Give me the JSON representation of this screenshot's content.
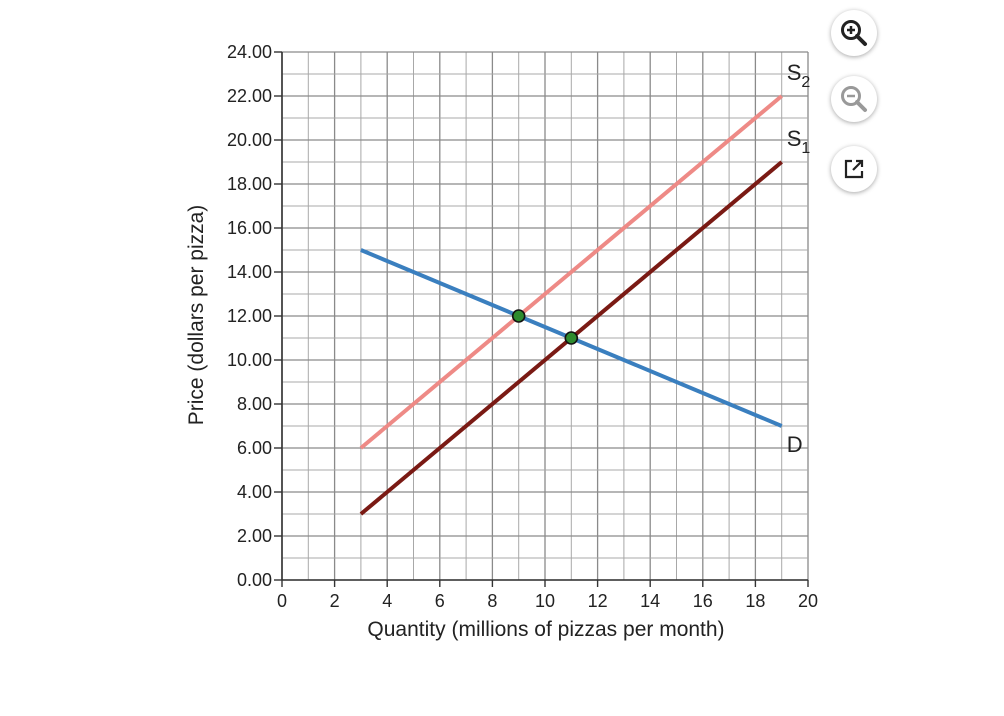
{
  "chart_data": {
    "type": "line",
    "xlabel": "Quantity (millions of pizzas per month)",
    "ylabel": "Price (dollars per pizza)",
    "xlim": [
      0,
      20
    ],
    "ylim": [
      0,
      24
    ],
    "x_ticks": [
      "0",
      "2",
      "4",
      "6",
      "8",
      "10",
      "12",
      "14",
      "16",
      "18",
      "20"
    ],
    "y_ticks": [
      "0.00",
      "2.00",
      "4.00",
      "6.00",
      "8.00",
      "10.00",
      "12.00",
      "14.00",
      "16.00",
      "18.00",
      "20.00",
      "22.00",
      "24.00"
    ],
    "grid": true,
    "series": [
      {
        "name": "D",
        "label_main": "D",
        "label_sub": "",
        "color": "#3a7fbf",
        "points": [
          [
            3,
            15
          ],
          [
            19,
            7
          ]
        ]
      },
      {
        "name": "S2",
        "label_main": "S",
        "label_sub": "2",
        "color": "#ee8a86",
        "points": [
          [
            3,
            6
          ],
          [
            19,
            22
          ]
        ]
      },
      {
        "name": "S1",
        "label_main": "S",
        "label_sub": "1",
        "color": "#7a1a14",
        "points": [
          [
            3,
            3
          ],
          [
            19,
            19
          ]
        ]
      }
    ],
    "equilibria": [
      {
        "x": 9,
        "y": 12,
        "color": "#2e8b2e"
      },
      {
        "x": 11,
        "y": 11,
        "color": "#2e8b2e"
      }
    ]
  },
  "toolbar": {
    "zoom_in": "zoom-in-icon",
    "zoom_out": "zoom-out-icon",
    "popout": "popout-icon"
  }
}
